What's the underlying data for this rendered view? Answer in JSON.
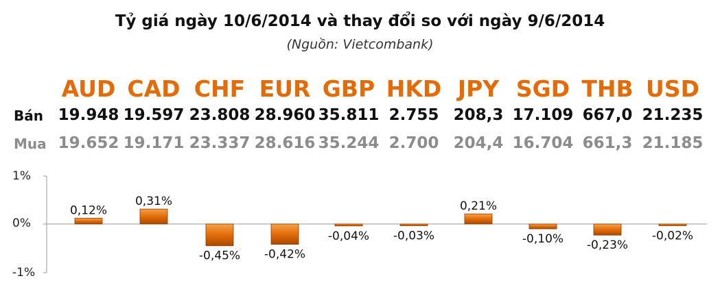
{
  "title": "Tỷ giá ngày 10/6/2014 và thay đổi so với ngày 9/6/2014",
  "subtitle": "(Nguồn: Vietcombank)",
  "rows": {
    "sell_label": "Bán",
    "buy_label": "Mua"
  },
  "currencies": [
    "AUD",
    "CAD",
    "CHF",
    "EUR",
    "GBP",
    "HKD",
    "JPY",
    "SGD",
    "THB",
    "USD"
  ],
  "sell": [
    "19.948",
    "19.597",
    "23.808",
    "28.960",
    "35.811",
    "2.755",
    "208,3",
    "17.109",
    "667,0",
    "21.235"
  ],
  "buy": [
    "19.652",
    "19.171",
    "23.337",
    "28.616",
    "35.244",
    "2.700",
    "204,4",
    "16.704",
    "661,3",
    "21.185"
  ],
  "colors": {
    "currency": "#e36c09",
    "bar": "#e36c09",
    "sell": "#111111",
    "buy": "#8c8c8c"
  },
  "chart_data": {
    "type": "bar",
    "categories": [
      "AUD",
      "CAD",
      "CHF",
      "EUR",
      "GBP",
      "HKD",
      "JPY",
      "SGD",
      "THB",
      "USD"
    ],
    "values": [
      0.12,
      0.31,
      -0.45,
      -0.42,
      -0.04,
      -0.03,
      0.21,
      -0.1,
      -0.23,
      -0.02
    ],
    "labels": [
      "0,12%",
      "0,31%",
      "-0,45%",
      "-0,42%",
      "-0,04%",
      "-0,03%",
      "0,21%",
      "-0,10%",
      "-0,23%",
      "-0,02%"
    ],
    "ylim": [
      -1,
      1
    ],
    "yticks": [
      "1%",
      "0%",
      "-1%"
    ],
    "grid": false
  }
}
